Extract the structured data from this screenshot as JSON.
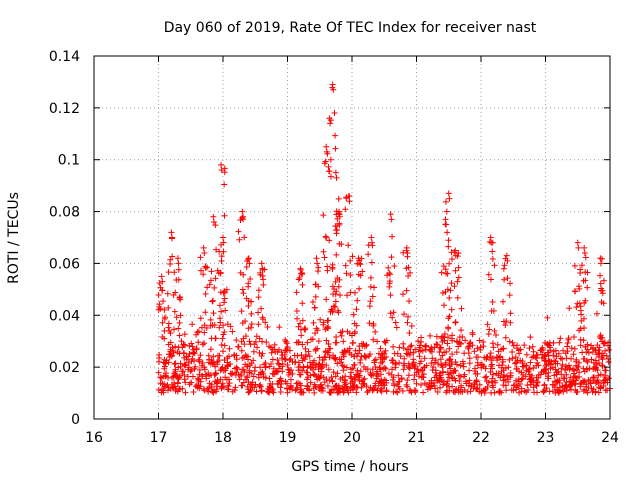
{
  "chart_data": {
    "type": "scatter",
    "title": "Day 060 of 2019, Rate Of TEC Index for receiver nast",
    "xlabel": "GPS time / hours",
    "ylabel": "ROTI / TECUs",
    "xlim": [
      16,
      24
    ],
    "ylim": [
      0,
      0.14
    ],
    "xticks": [
      "16",
      "17",
      "18",
      "19",
      "20",
      "21",
      "22",
      "23",
      "24"
    ],
    "yticks": [
      "0",
      "0.02",
      "0.04",
      "0.06",
      "0.08",
      "0.1",
      "0.12",
      "0.14"
    ],
    "grid": true,
    "marker": "+",
    "color": "#ff0000",
    "series": [
      {
        "name": "ROTI",
        "x_start": 17.0,
        "x_end": 24.0,
        "baseline_range": [
          0.006,
          0.04
        ],
        "peaks": [
          {
            "x": 17.05,
            "y": 0.055
          },
          {
            "x": 17.2,
            "y": 0.072
          },
          {
            "x": 17.3,
            "y": 0.062
          },
          {
            "x": 17.7,
            "y": 0.066
          },
          {
            "x": 17.85,
            "y": 0.078
          },
          {
            "x": 17.97,
            "y": 0.098
          },
          {
            "x": 18.0,
            "y": 0.07
          },
          {
            "x": 18.3,
            "y": 0.08
          },
          {
            "x": 18.4,
            "y": 0.062
          },
          {
            "x": 18.6,
            "y": 0.06
          },
          {
            "x": 19.2,
            "y": 0.058
          },
          {
            "x": 19.45,
            "y": 0.062
          },
          {
            "x": 19.6,
            "y": 0.105
          },
          {
            "x": 19.65,
            "y": 0.116
          },
          {
            "x": 19.7,
            "y": 0.129
          },
          {
            "x": 19.75,
            "y": 0.095
          },
          {
            "x": 19.8,
            "y": 0.08
          },
          {
            "x": 19.95,
            "y": 0.086
          },
          {
            "x": 20.1,
            "y": 0.062
          },
          {
            "x": 20.3,
            "y": 0.07
          },
          {
            "x": 20.6,
            "y": 0.079
          },
          {
            "x": 20.85,
            "y": 0.066
          },
          {
            "x": 21.45,
            "y": 0.077
          },
          {
            "x": 21.5,
            "y": 0.087
          },
          {
            "x": 21.6,
            "y": 0.065
          },
          {
            "x": 22.15,
            "y": 0.07
          },
          {
            "x": 22.4,
            "y": 0.063
          },
          {
            "x": 23.5,
            "y": 0.068
          },
          {
            "x": 23.6,
            "y": 0.066
          },
          {
            "x": 23.85,
            "y": 0.062
          }
        ]
      }
    ]
  }
}
